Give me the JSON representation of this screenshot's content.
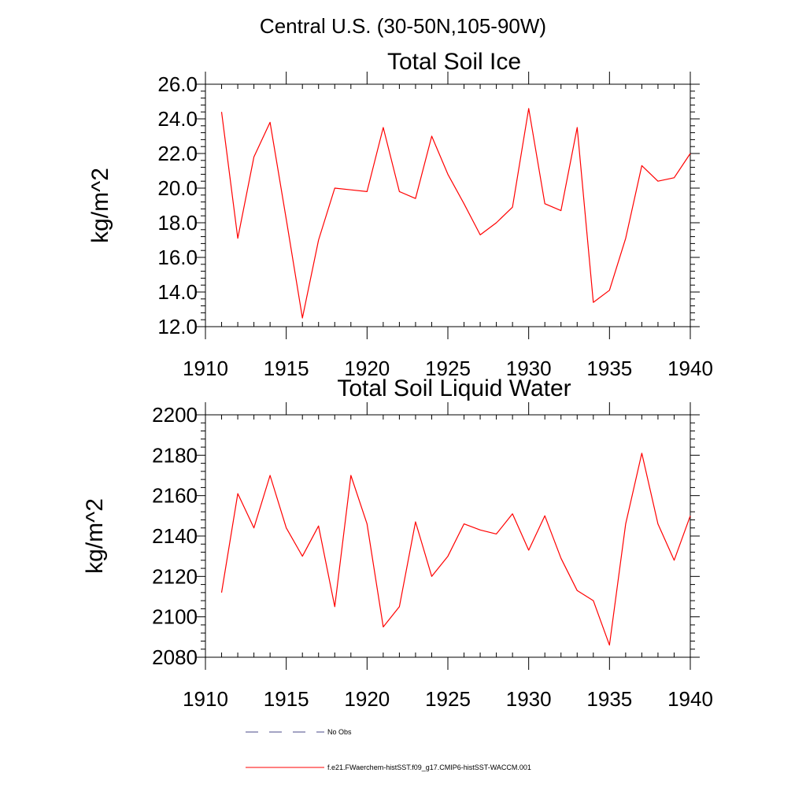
{
  "figure": {
    "main_title": "Central U.S. (30-50N,105-90W)"
  },
  "chart_data": [
    {
      "type": "line",
      "title": "Total Soil Ice",
      "xlabel": "",
      "ylabel": "kg/m^2",
      "xlim": [
        1910,
        1940
      ],
      "ylim": [
        12,
        26
      ],
      "xticks": [
        1910,
        1915,
        1920,
        1925,
        1930,
        1935,
        1940
      ],
      "xtick_labels": [
        "1910",
        "1915",
        "1920",
        "1925",
        "1930",
        "1935",
        "1940"
      ],
      "yticks": [
        12,
        14,
        16,
        18,
        20,
        22,
        24,
        26
      ],
      "ytick_labels": [
        "12.0",
        "14.0",
        "16.0",
        "18.0",
        "20.0",
        "22.0",
        "24.0",
        "26.0"
      ],
      "grid": false,
      "series": [
        {
          "name": "f.e21.FWaerchem-histSST.f09_g17.CMIP6-histSST-WACCM.001",
          "color": "#ff0000",
          "x": [
            1911,
            1912,
            1913,
            1914,
            1915,
            1916,
            1917,
            1918,
            1919,
            1920,
            1921,
            1922,
            1923,
            1924,
            1925,
            1926,
            1927,
            1928,
            1929,
            1930,
            1931,
            1932,
            1933,
            1934,
            1935,
            1936,
            1937,
            1938,
            1939,
            1940
          ],
          "values": [
            24.4,
            17.1,
            21.8,
            23.8,
            18.2,
            12.5,
            17.0,
            20.0,
            19.9,
            19.8,
            23.5,
            19.8,
            19.4,
            23.0,
            20.8,
            19.1,
            17.3,
            18.0,
            18.9,
            24.6,
            19.1,
            18.7,
            23.5,
            13.4,
            14.1,
            17.1,
            21.3,
            20.4,
            20.6,
            22.0
          ]
        }
      ]
    },
    {
      "type": "line",
      "title": "Total Soil Liquid Water",
      "xlabel": "",
      "ylabel": "kg/m^2",
      "xlim": [
        1910,
        1940
      ],
      "ylim": [
        2080,
        2200
      ],
      "xticks": [
        1910,
        1915,
        1920,
        1925,
        1930,
        1935,
        1940
      ],
      "xtick_labels": [
        "1910",
        "1915",
        "1920",
        "1925",
        "1930",
        "1935",
        "1940"
      ],
      "yticks": [
        2080,
        2100,
        2120,
        2140,
        2160,
        2180,
        2200
      ],
      "ytick_labels": [
        "2080",
        "2100",
        "2120",
        "2140",
        "2160",
        "2180",
        "2200"
      ],
      "grid": false,
      "series": [
        {
          "name": "f.e21.FWaerchem-histSST.f09_g17.CMIP6-histSST-WACCM.001",
          "color": "#ff0000",
          "x": [
            1911,
            1912,
            1913,
            1914,
            1915,
            1916,
            1917,
            1918,
            1919,
            1920,
            1921,
            1922,
            1923,
            1924,
            1925,
            1926,
            1927,
            1928,
            1929,
            1930,
            1931,
            1932,
            1933,
            1934,
            1935,
            1936,
            1937,
            1938,
            1939,
            1940
          ],
          "values": [
            2112,
            2161,
            2144,
            2170,
            2144,
            2130,
            2145,
            2105,
            2170,
            2146,
            2095,
            2105,
            2147,
            2120,
            2130,
            2146,
            2143,
            2141,
            2151,
            2133,
            2150,
            2129,
            2113,
            2108,
            2086,
            2146,
            2181,
            2146,
            2128,
            2150
          ]
        }
      ]
    }
  ],
  "legend": {
    "placement": "bottom",
    "items": [
      {
        "label": "No Obs",
        "color": "#4a4a8a",
        "style": "dashed"
      },
      {
        "label": "f.e21.FWaerchem-histSST.f09_g17.CMIP6-histSST-WACCM.001",
        "color": "#ff0000",
        "style": "solid"
      }
    ]
  }
}
